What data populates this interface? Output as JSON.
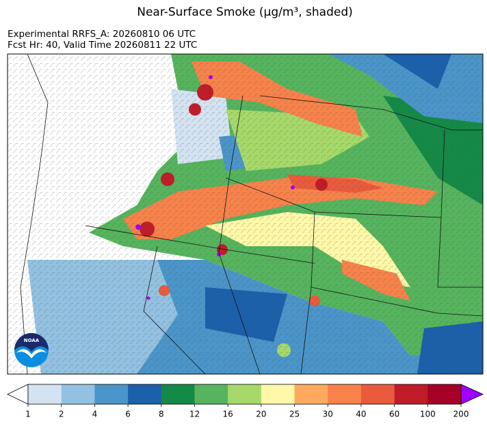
{
  "title": "Near-Surface Smoke (μg/m³, shaded)",
  "subtitle": [
    "Experimental RRFS_A: 20260810 06 UTC",
    "Fcst Hr: 40, Valid Time 20260811 22 UTC"
  ],
  "logo_text": "NOAA",
  "legend": {
    "colorbar": {
      "bounds": [
        1,
        2,
        4,
        6,
        8,
        12,
        16,
        20,
        25,
        30,
        40,
        60,
        100,
        200
      ],
      "colors": [
        "#d4e3f2",
        "#93c1e1",
        "#4a95c9",
        "#1a60ab",
        "#138a46",
        "#55b45d",
        "#a6d96a",
        "#fff8a9",
        "#fdaa5e",
        "#f7824a",
        "#ea5a3c",
        "#c01c28",
        "#a50026"
      ],
      "under_color": "#ffffff",
      "over_color": "#a000ff"
    }
  }
}
